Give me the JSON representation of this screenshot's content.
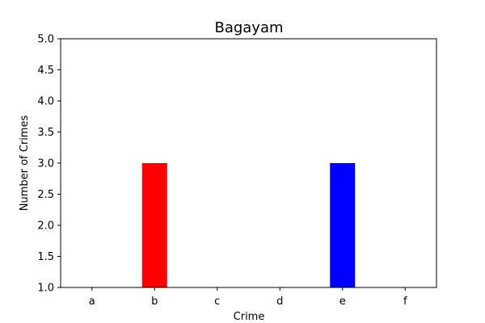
{
  "chart_data": {
    "type": "bar",
    "title": "Bagayam",
    "xlabel": "Crime",
    "ylabel": "Number of Crimes",
    "categories": [
      "a",
      "b",
      "c",
      "d",
      "e",
      "f"
    ],
    "values": [
      1,
      3,
      1,
      1,
      3,
      1
    ],
    "colors": [
      "#ff0000",
      "#ff0000",
      "#0000ff",
      "#0000ff",
      "#0000ff",
      "#0000ff"
    ],
    "ylim": [
      1.0,
      5.0
    ],
    "yticks": [
      "1.0",
      "1.5",
      "2.0",
      "2.5",
      "3.0",
      "3.5",
      "4.0",
      "4.5",
      "5.0"
    ],
    "grid": false,
    "legend": "none"
  }
}
